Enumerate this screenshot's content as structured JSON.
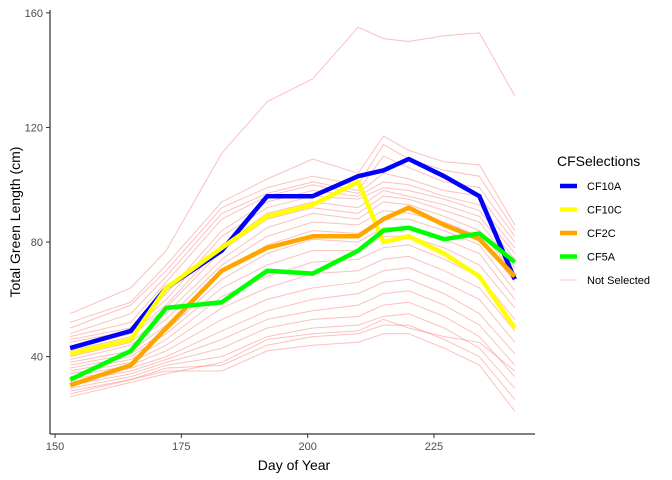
{
  "chart_data": {
    "type": "line",
    "xlabel": "Day of Year",
    "ylabel": "Total Green Length (cm)",
    "xlim": [
      149,
      245
    ],
    "ylim": [
      13,
      161
    ],
    "x_ticks": [
      150,
      175,
      200,
      225
    ],
    "y_ticks": [
      40,
      80,
      120,
      160
    ],
    "grid": false,
    "legend_title": "CFSelections",
    "legend_position": "right",
    "x": [
      153,
      165,
      172,
      183,
      192,
      201,
      210,
      215,
      220,
      227,
      234,
      241
    ],
    "series": [
      {
        "name": "CF10A",
        "color": "#0000ff",
        "values": [
          43,
          49,
          64,
          77,
          96,
          96,
          103,
          105,
          109,
          103,
          96,
          67
        ]
      },
      {
        "name": "CF10C",
        "color": "#ffff00",
        "values": [
          41,
          46,
          64,
          78,
          89,
          93,
          101,
          80,
          82,
          76,
          68,
          50
        ]
      },
      {
        "name": "CF2C",
        "color": "#ffa500",
        "values": [
          30,
          37,
          50,
          70,
          78,
          82,
          82,
          88,
          92,
          86,
          81,
          68
        ]
      },
      {
        "name": "CF5A",
        "color": "#00ff00",
        "values": [
          32,
          42,
          57,
          59,
          70,
          69,
          77,
          84,
          85,
          81,
          83,
          73
        ]
      }
    ],
    "background_series": {
      "name": "Not Selected",
      "color": "#f8766d",
      "lines": [
        [
          55,
          64,
          77,
          111,
          129,
          137,
          155,
          151,
          150,
          152,
          153,
          131
        ],
        [
          52,
          59,
          72,
          94,
          102,
          109,
          104,
          117,
          112,
          108,
          107,
          86
        ],
        [
          50,
          58,
          70,
          92,
          99,
          103,
          100,
          114,
          109,
          105,
          103,
          84
        ],
        [
          48,
          55,
          68,
          90,
          97,
          101,
          98,
          110,
          106,
          101,
          99,
          82
        ],
        [
          47,
          52,
          66,
          88,
          96,
          100,
          97,
          104,
          102,
          98,
          96,
          80
        ],
        [
          46,
          50,
          62,
          84,
          94,
          98,
          96,
          101,
          100,
          96,
          93,
          78
        ],
        [
          45,
          49,
          60,
          82,
          92,
          96,
          95,
          99,
          98,
          95,
          91,
          76
        ],
        [
          43,
          48,
          58,
          79,
          90,
          94,
          92,
          98,
          96,
          93,
          89,
          74
        ],
        [
          42,
          47,
          57,
          77,
          88,
          92,
          90,
          96,
          95,
          91,
          87,
          71
        ],
        [
          40,
          45,
          55,
          74,
          85,
          90,
          88,
          94,
          93,
          89,
          84,
          69
        ],
        [
          39,
          44,
          53,
          72,
          82,
          87,
          86,
          91,
          90,
          87,
          82,
          66
        ],
        [
          38,
          42,
          51,
          70,
          79,
          84,
          83,
          88,
          88,
          84,
          79,
          63
        ],
        [
          37,
          41,
          49,
          67,
          76,
          81,
          80,
          85,
          85,
          81,
          76,
          60
        ],
        [
          36,
          40,
          48,
          64,
          72,
          77,
          77,
          82,
          82,
          78,
          72,
          57
        ],
        [
          35,
          39,
          46,
          61,
          68,
          73,
          74,
          78,
          79,
          74,
          68,
          53
        ],
        [
          34,
          38,
          44,
          57,
          64,
          69,
          70,
          74,
          75,
          70,
          64,
          49
        ],
        [
          33,
          37,
          42,
          53,
          60,
          64,
          66,
          70,
          71,
          66,
          60,
          45
        ],
        [
          32,
          36,
          40,
          49,
          56,
          60,
          62,
          66,
          67,
          62,
          55,
          41
        ],
        [
          31,
          35,
          39,
          46,
          53,
          56,
          58,
          62,
          63,
          58,
          51,
          37
        ],
        [
          30,
          34,
          38,
          43,
          50,
          53,
          54,
          58,
          59,
          54,
          47,
          33
        ],
        [
          29,
          33,
          37,
          40,
          47,
          50,
          51,
          54,
          55,
          50,
          43,
          29
        ],
        [
          28,
          32,
          36,
          37,
          44,
          47,
          48,
          51,
          51,
          46,
          40,
          25
        ],
        [
          27,
          32,
          35,
          35,
          42,
          44,
          45,
          48,
          48,
          43,
          37,
          21
        ],
        [
          26,
          31,
          34,
          38,
          46,
          48,
          49,
          53,
          50,
          47,
          45,
          35
        ]
      ]
    }
  }
}
